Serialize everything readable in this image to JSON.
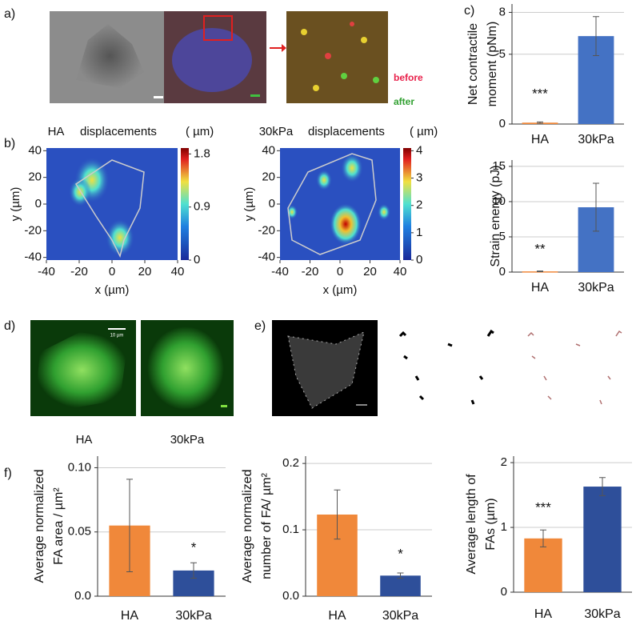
{
  "panel_labels": [
    "a)",
    "b)",
    "c)",
    "d)",
    "e)",
    "f)"
  ],
  "panel_a": {
    "legend_before": "before",
    "legend_after": "after"
  },
  "panel_d": {
    "labels": [
      "HA",
      "30kPa"
    ],
    "scale_bar": "10 µm"
  },
  "chart_data": [
    {
      "type": "heatmap",
      "label": "HA",
      "title": "displacements",
      "unit_label": "( µm)",
      "xlabel": "x (µm)",
      "ylabel": "y (µm)",
      "xlim": [
        -40,
        40
      ],
      "ylim": [
        -42,
        42
      ],
      "xticks": [
        -40,
        -20,
        0,
        20,
        40
      ],
      "yticks": [
        -40,
        -20,
        0,
        20,
        40
      ],
      "zlim": [
        0,
        1.9
      ],
      "zticks": [
        0,
        0.9,
        1.8
      ],
      "colormap": "jet"
    },
    {
      "type": "heatmap",
      "label": "30kPa",
      "title": "displacements",
      "unit_label": "( µm)",
      "xlabel": "x (µm)",
      "ylabel": "y (µm)",
      "xlim": [
        -40,
        40
      ],
      "ylim": [
        -42,
        42
      ],
      "xticks": [
        -40,
        -20,
        0,
        20,
        40
      ],
      "yticks": [
        -40,
        -20,
        0,
        20,
        40
      ],
      "zlim": [
        0,
        4.1
      ],
      "zticks": [
        0,
        1,
        2,
        3,
        4
      ],
      "colormap": "jet"
    },
    {
      "type": "bar",
      "ylabel": [
        "Net contractile",
        "moment (pNm)"
      ],
      "categories": [
        "HA",
        "30kPa"
      ],
      "values": [
        0.1,
        6.3
      ],
      "errors": [
        0.05,
        1.4
      ],
      "colors": [
        "#f0883a",
        "#4472c4"
      ],
      "annotation": "***",
      "ylim": [
        0,
        8.6
      ],
      "yticks": [
        0,
        5,
        8
      ],
      "grid": true
    },
    {
      "type": "bar",
      "ylabel": [
        "Strain energy (pJ)"
      ],
      "categories": [
        "HA",
        "30kPa"
      ],
      "values": [
        0.1,
        9.2
      ],
      "errors": [
        0.05,
        3.4
      ],
      "colors": [
        "#f0883a",
        "#4472c4"
      ],
      "annotation": "**",
      "ylim": [
        0,
        15.9
      ],
      "yticks": [
        0,
        5,
        10,
        15
      ],
      "grid": true
    },
    {
      "type": "bar",
      "ylabel": [
        "Average normalized",
        "FA area / µm²"
      ],
      "categories": [
        "HA",
        "30kPa"
      ],
      "values": [
        0.055,
        0.02
      ],
      "errors": [
        0.036,
        0.006
      ],
      "colors": [
        "#f0883a",
        "#2e4f9a"
      ],
      "annotation": "*",
      "ylim": [
        0,
        0.109
      ],
      "yticks": [
        {
          "value": 0,
          "label": "0.0"
        },
        0.05,
        {
          "value": 0.1,
          "label": "0.10"
        }
      ],
      "grid": true
    },
    {
      "type": "bar",
      "ylabel": [
        "Average normalized",
        "number of FA/ µm²"
      ],
      "categories": [
        "HA",
        "30kPa"
      ],
      "values": [
        0.123,
        0.031
      ],
      "errors": [
        0.037,
        0.004
      ],
      "colors": [
        "#f0883a",
        "#2e4f9a"
      ],
      "annotation": "*",
      "ylim": [
        0,
        0.211
      ],
      "yticks": [
        {
          "value": 0,
          "label": "0.0"
        },
        0.1,
        0.2
      ],
      "grid": true
    },
    {
      "type": "bar",
      "ylabel": [
        "Average length of",
        "FAs (µm)"
      ],
      "categories": [
        "HA",
        "30kPa"
      ],
      "values": [
        0.83,
        1.63
      ],
      "errors": [
        0.13,
        0.14
      ],
      "colors": [
        "#f0883a",
        "#2e4f9a"
      ],
      "annotation": "***",
      "ylim": [
        0,
        2.1
      ],
      "yticks": [
        0,
        1,
        2
      ],
      "grid": true
    }
  ]
}
